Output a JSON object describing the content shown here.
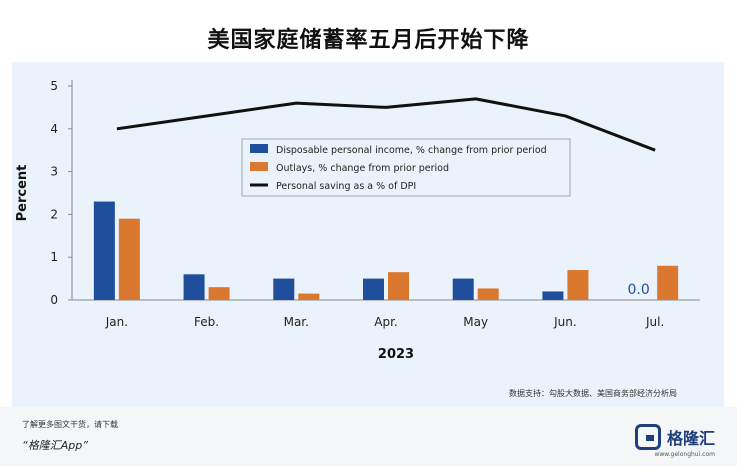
{
  "header": {
    "title": "美国家庭储蓄率五月后开始下降"
  },
  "chart_data": {
    "type": "bar",
    "categories": [
      "Jan.",
      "Feb.",
      "Mar.",
      "Apr.",
      "May",
      "Jun.",
      "Jul."
    ],
    "series": [
      {
        "name": "Disposable personal income, % change from prior period",
        "kind": "bar",
        "color": "#1f4e9c",
        "values": [
          2.3,
          0.6,
          0.5,
          0.5,
          0.5,
          0.2,
          0.0
        ]
      },
      {
        "name": "Outlays, % change from prior period",
        "kind": "bar",
        "color": "#d9782e",
        "values": [
          1.9,
          0.3,
          0.15,
          0.65,
          0.27,
          0.7,
          0.8
        ]
      },
      {
        "name": "Personal saving as a % of DPI",
        "kind": "line",
        "color": "#111111",
        "values": [
          4.0,
          4.3,
          4.6,
          4.5,
          4.7,
          4.3,
          3.5
        ]
      }
    ],
    "data_labels": [
      {
        "category": "Jul.",
        "series": 0,
        "text": "0.0"
      }
    ],
    "xlabel": "2023",
    "ylabel": "Percent",
    "ylim": [
      0,
      5
    ],
    "yticks": [
      "0",
      "1",
      "2",
      "3",
      "4",
      "5"
    ],
    "legend_position": "center",
    "grid": false
  },
  "source_note": "数据支持：勾股大数据、美国商务部经济分析局",
  "footer": {
    "line1": "了解更多图文干货，请下载",
    "line2": "“格隆汇App”",
    "brand": "格隆汇",
    "brand_url": "www.gelonghui.com"
  }
}
